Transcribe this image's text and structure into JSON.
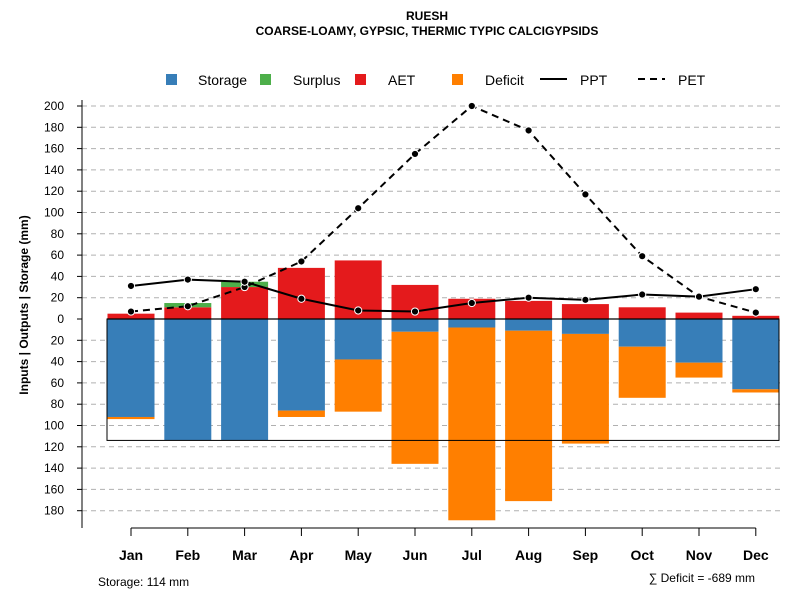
{
  "chart_data": {
    "type": "bar",
    "title": "RUESH",
    "subtitle": "COARSE-LOAMY, GYPSIC, THERMIC TYPIC CALCIGYPSIDS",
    "ylabel": "Inputs | Outputs | Storage     (mm)",
    "categories": [
      "Jan",
      "Feb",
      "Mar",
      "Apr",
      "May",
      "Jun",
      "Jul",
      "Aug",
      "Sep",
      "Oct",
      "Nov",
      "Dec"
    ],
    "ylim": [
      -190,
      200
    ],
    "y_ticks": [
      -180,
      -160,
      -140,
      -120,
      -100,
      -80,
      -60,
      -40,
      -20,
      0,
      20,
      40,
      60,
      80,
      100,
      120,
      140,
      160,
      180,
      200
    ],
    "y_tick_labels": [
      "180",
      "160",
      "140",
      "120",
      "100",
      "80",
      "60",
      "40",
      "20",
      "0",
      "20",
      "40",
      "60",
      "80",
      "100",
      "120",
      "140",
      "160",
      "180",
      "200"
    ],
    "legend": {
      "placement": "top",
      "items": [
        {
          "label": "Storage",
          "kind": "box",
          "color": "#377EB8"
        },
        {
          "label": "Surplus",
          "kind": "box",
          "color": "#4DAF4A"
        },
        {
          "label": "AET",
          "kind": "box",
          "color": "#E41A1C"
        },
        {
          "label": "Deficit",
          "kind": "box",
          "color": "#FF7F00"
        },
        {
          "label": "PPT",
          "kind": "solid-line",
          "color": "#000000"
        },
        {
          "label": "PET",
          "kind": "dashed-line",
          "color": "#000000"
        }
      ]
    },
    "series": [
      {
        "name": "AET",
        "color": "#E41A1C",
        "values": [
          5,
          11,
          30,
          48,
          55,
          32,
          19,
          17,
          14,
          11,
          6,
          3
        ]
      },
      {
        "name": "Surplus",
        "color": "#4DAF4A",
        "values": [
          0,
          4,
          5,
          0,
          0,
          0,
          0,
          0,
          0,
          0,
          0,
          0
        ]
      },
      {
        "name": "Storage",
        "color": "#377EB8",
        "values": [
          92,
          114,
          114,
          86,
          38,
          12,
          8,
          11,
          14,
          26,
          41,
          66
        ]
      },
      {
        "name": "Deficit",
        "color": "#FF7F00",
        "values": [
          2,
          0,
          0,
          6,
          49,
          124,
          181,
          160,
          103,
          48,
          14,
          3
        ]
      },
      {
        "name": "PPT",
        "color": "#000000",
        "values": [
          31,
          37,
          35,
          19,
          8,
          7,
          15,
          20,
          18,
          23,
          21,
          28
        ]
      },
      {
        "name": "PET",
        "color": "#000000",
        "values": [
          7,
          12,
          30,
          54,
          104,
          155,
          200,
          177,
          117,
          59,
          21,
          6
        ]
      }
    ],
    "storage_capacity": 114,
    "footer_left": "Storage: 114 mm",
    "footer_right": "∑ Deficit = -689 mm"
  }
}
